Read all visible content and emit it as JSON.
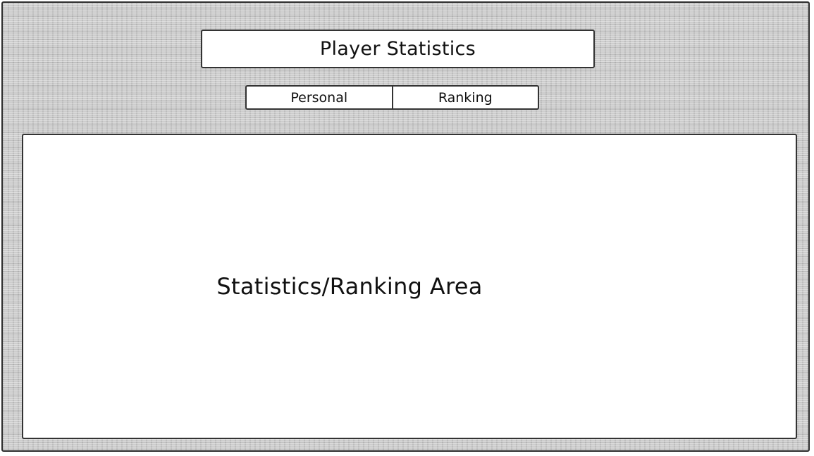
{
  "header": {
    "title": "Player Statistics"
  },
  "tabs": [
    {
      "label": "Personal"
    },
    {
      "label": "Ranking"
    }
  ],
  "main": {
    "area_label": "Statistics/Ranking Area"
  }
}
